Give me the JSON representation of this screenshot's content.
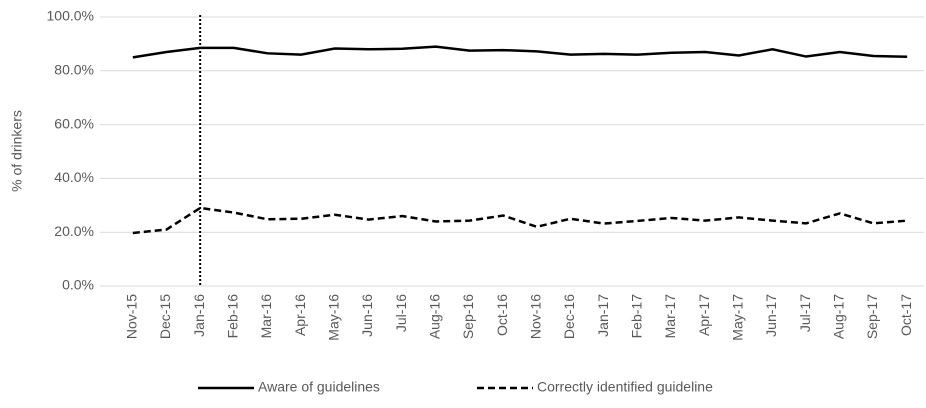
{
  "chart_data": {
    "type": "line",
    "y_label": "% of drinkers",
    "categories": [
      "Nov-15",
      "Dec-15",
      "Jan-16",
      "Feb-16",
      "Mar-16",
      "Apr-16",
      "May-16",
      "Jun-16",
      "Jul-16",
      "Aug-16",
      "Sep-16",
      "Oct-16",
      "Nov-16",
      "Dec-16",
      "Jan-17",
      "Feb-17",
      "Mar-17",
      "Apr-17",
      "May-17",
      "Jun-17",
      "Jul-17",
      "Aug-17",
      "Sep-17",
      "Oct-17"
    ],
    "series": [
      {
        "name": "Aware of guidelines",
        "color": "#000000",
        "dash": "solid",
        "values": [
          85.0,
          87.0,
          88.5,
          88.5,
          86.5,
          86.0,
          88.3,
          88.0,
          88.2,
          89.0,
          87.5,
          87.7,
          87.2,
          86.0,
          86.3,
          86.0,
          86.7,
          87.0,
          85.7,
          88.0,
          85.3,
          87.0,
          85.5,
          85.2
        ]
      },
      {
        "name": "Correctly identified guideline",
        "color": "#000000",
        "dash": "dashed",
        "values": [
          19.7,
          21.0,
          29.0,
          27.3,
          24.8,
          25.0,
          26.5,
          24.7,
          26.0,
          24.0,
          24.3,
          26.2,
          22.0,
          25.0,
          23.2,
          24.2,
          25.3,
          24.3,
          25.5,
          24.3,
          23.3,
          27.0,
          23.3,
          24.3
        ]
      }
    ],
    "ylim": [
      0,
      100
    ],
    "yticks": [
      {
        "value": 0,
        "label": "0.0%"
      },
      {
        "value": 20,
        "label": "20.0%"
      },
      {
        "value": 40,
        "label": "40.0%"
      },
      {
        "value": 60,
        "label": "60.0%"
      },
      {
        "value": 80,
        "label": "80.0%"
      },
      {
        "value": 100,
        "label": "100.0%"
      }
    ],
    "grid": true,
    "vline": "Jan-16",
    "legend": "bottom"
  }
}
